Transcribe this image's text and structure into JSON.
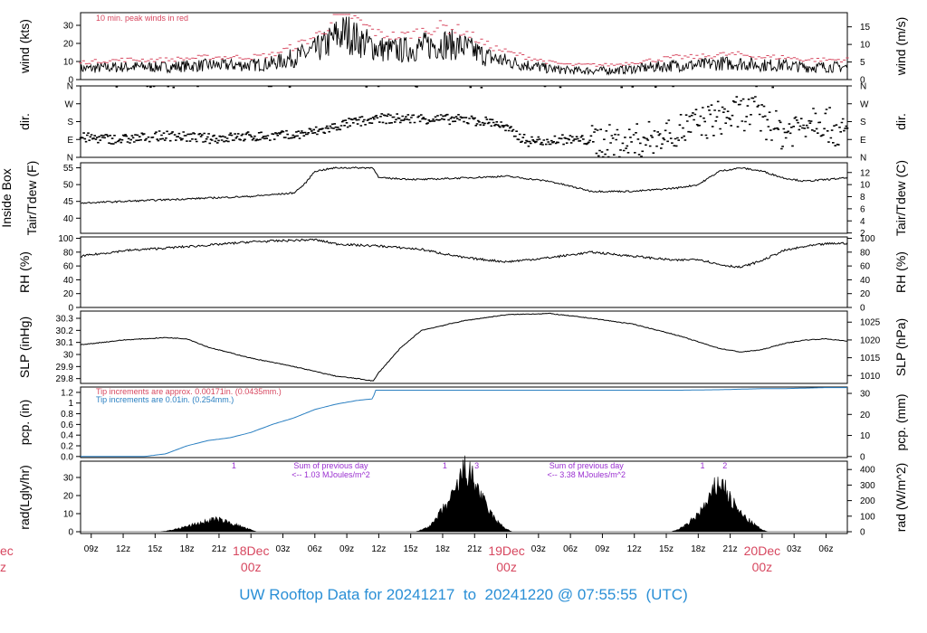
{
  "colors": {
    "frame": "#000000",
    "trace": "#000000",
    "peak": "#d7475f",
    "precip": "#2a7fc1",
    "note_purple": "#9a2fd0",
    "day_label": "#d7475f",
    "footer": "#2a8fd6"
  },
  "footer": {
    "title_parts": [
      "UW Rooftop Data for 20241217",
      "to",
      "20241220 @ 07:55:55",
      "(UTC)"
    ]
  },
  "time_axis": {
    "hour_ticks": [
      "09z",
      "12z",
      "15z",
      "18z",
      "21z",
      "03z",
      "06z",
      "09z",
      "12z",
      "15z",
      "18z",
      "21z",
      "03z",
      "06z",
      "09z",
      "12z",
      "15z",
      "18z",
      "21z",
      "03z",
      "06z"
    ],
    "hour_positions": [
      9,
      12,
      15,
      18,
      21,
      27,
      30,
      33,
      36,
      39,
      42,
      45,
      51,
      54,
      57,
      60,
      63,
      66,
      69,
      75,
      78
    ],
    "day_labels": [
      {
        "day": "18Dec",
        "hour": "00z",
        "t": 24
      },
      {
        "day": "19Dec",
        "hour": "00z",
        "t": 48
      },
      {
        "day": "20Dec",
        "hour": "00z",
        "t": 72
      }
    ],
    "left_clipped": {
      "day": "ec",
      "hour": "z"
    },
    "t_range": [
      8,
      80
    ]
  },
  "chart_data": [
    {
      "type": "line",
      "ylabel_left": "wind (kts)",
      "ylabel_right": "wind (m/s)",
      "ylim": [
        0,
        37
      ],
      "yticks_left": [
        0,
        10,
        20,
        30
      ],
      "yticks_right": [
        0,
        5,
        10,
        15
      ],
      "right_factor": 1.944,
      "annotation": "10 min. peak winds in red",
      "series": [
        {
          "values_t": [
            8,
            12,
            16,
            20,
            24,
            26,
            28,
            29,
            30,
            31,
            32,
            33,
            34,
            36,
            38,
            40,
            42,
            44,
            46,
            48,
            50,
            52,
            54,
            56,
            58,
            60,
            62,
            64,
            66,
            68,
            70,
            72,
            74,
            76,
            78,
            80
          ],
          "values": [
            6,
            7,
            7,
            8,
            8,
            9,
            12,
            14,
            16,
            19,
            24,
            26,
            22,
            17,
            16,
            18,
            20,
            18,
            13,
            10,
            8,
            6,
            5,
            5,
            5,
            6,
            7,
            8,
            8,
            9,
            9,
            8,
            8,
            7,
            7,
            7
          ]
        }
      ]
    },
    {
      "type": "scatter",
      "ylabel_left": "dir.",
      "ylabel_right": "dir.",
      "ylim": [
        0,
        360
      ],
      "yticks_left_labels": [
        "N",
        "E",
        "S",
        "W",
        "N"
      ],
      "yticks_values": [
        0,
        90,
        180,
        270,
        360
      ],
      "series": [
        {
          "values_t": [
            8,
            12,
            16,
            20,
            24,
            28,
            31,
            33,
            36,
            40,
            44,
            47,
            50,
            53,
            56,
            59,
            62,
            65,
            68,
            71,
            74,
            77,
            80
          ],
          "values": [
            100,
            90,
            110,
            95,
            105,
            110,
            140,
            170,
            195,
            195,
            190,
            175,
            80,
            90,
            85,
            70,
            100,
            150,
            200,
            230,
            120,
            210,
            100
          ]
        }
      ]
    },
    {
      "type": "line",
      "ylabel_left": "Tair/Tdew (F)",
      "ylabel_left_sub": "Inside Box",
      "ylabel_right": "Tair/Tdew (C)",
      "ylim": [
        35.5,
        56.5
      ],
      "yticks_left": [
        40,
        45,
        50,
        55
      ],
      "yticks_right": [
        2,
        4,
        6,
        8,
        10,
        12
      ],
      "series": [
        {
          "values_t": [
            8,
            12,
            16,
            20,
            24,
            28,
            29,
            30,
            32,
            34,
            35.5,
            36,
            40,
            44,
            48,
            52,
            56,
            60,
            64,
            66,
            68,
            70,
            72,
            74,
            76,
            78,
            80
          ],
          "values": [
            44.5,
            45,
            45.5,
            46,
            46.5,
            47.5,
            50,
            54,
            55,
            55,
            55,
            52,
            51.5,
            52,
            52.5,
            51,
            48,
            48,
            49,
            50,
            54,
            55,
            54,
            52,
            51,
            51.5,
            52
          ]
        }
      ]
    },
    {
      "type": "line",
      "ylabel_left": "RH (%)",
      "ylabel_right": "RH (%)",
      "ylim": [
        0,
        102
      ],
      "yticks_left": [
        0,
        20,
        40,
        60,
        80,
        100
      ],
      "yticks_right": [
        0,
        20,
        40,
        60,
        80,
        100
      ],
      "series": [
        {
          "values_t": [
            8,
            12,
            16,
            20,
            24,
            28,
            30,
            32,
            34,
            36,
            40,
            44,
            48,
            52,
            56,
            60,
            64,
            66,
            68,
            70,
            72,
            74,
            76,
            78,
            80
          ],
          "values": [
            74,
            82,
            86,
            90,
            95,
            97,
            98,
            92,
            90,
            89,
            84,
            72,
            66,
            72,
            80,
            74,
            68,
            70,
            62,
            58,
            68,
            82,
            88,
            92,
            93
          ]
        }
      ]
    },
    {
      "type": "line",
      "ylabel_left": "SLP (inHg)",
      "ylabel_right": "SLP (hPa)",
      "ylim": [
        29.76,
        30.36
      ],
      "yticks_left": [
        29.8,
        29.9,
        30.0,
        30.1,
        30.2,
        30.3
      ],
      "yticks_right": [
        1010,
        1015,
        1020,
        1025
      ],
      "series": [
        {
          "values_t": [
            8,
            12,
            16,
            18,
            20,
            24,
            28,
            32,
            34,
            35.5,
            36,
            38,
            40,
            44,
            48,
            52,
            56,
            60,
            64,
            68,
            70,
            72,
            74,
            76,
            78,
            80
          ],
          "values": [
            30.08,
            30.12,
            30.14,
            30.13,
            30.06,
            29.97,
            29.9,
            29.82,
            29.8,
            29.78,
            29.85,
            30.05,
            30.2,
            30.28,
            30.33,
            30.34,
            30.3,
            30.25,
            30.16,
            30.05,
            30.02,
            30.04,
            30.09,
            30.12,
            30.13,
            30.11
          ]
        }
      ]
    },
    {
      "type": "line",
      "ylabel_left": "pcp. (in)",
      "ylabel_right": "pcp. (mm)",
      "ylim": [
        -0.02,
        1.3
      ],
      "yticks_left": [
        0.0,
        0.2,
        0.4,
        0.6,
        0.8,
        1.0,
        1.2
      ],
      "yticks_right": [
        0,
        10,
        20,
        30
      ],
      "notes": [
        "Tip increments are approx. 0.00171in. (0.0435mm.)",
        "Tip increments are 0.01in. (0.254mm.)"
      ],
      "series": [
        {
          "values_t": [
            8,
            14,
            16,
            18,
            20,
            22,
            24,
            26,
            28,
            30,
            32,
            34,
            35.5,
            35.6,
            48,
            64,
            68,
            70,
            72,
            74,
            76,
            78,
            80
          ],
          "values": [
            0.0,
            0.0,
            0.05,
            0.2,
            0.3,
            0.35,
            0.45,
            0.6,
            0.72,
            0.88,
            0.98,
            1.05,
            1.08,
            1.24,
            1.24,
            1.24,
            1.25,
            1.26,
            1.27,
            1.27,
            1.28,
            1.29,
            1.29
          ]
        }
      ]
    },
    {
      "type": "area",
      "ylabel_left": "rad(Lgly/hr)",
      "ylabel_right": "rad (W/m^2)",
      "ylim": [
        -1,
        39
      ],
      "yticks_left": [
        0,
        10,
        20,
        30
      ],
      "yticks_right": [
        0,
        100,
        200,
        300,
        400
      ],
      "right_factor": 11.63,
      "annotations": [
        {
          "text": "1",
          "t": 22.4
        },
        {
          "text": "Sum of previous day",
          "t": 31.5
        },
        {
          "text": "<-- 1.03 MJoules/m^2",
          "t": 31.5,
          "line": 2
        },
        {
          "text": "1",
          "t": 42.2
        },
        {
          "text": "3",
          "t": 45.2
        },
        {
          "text": "Sum of previous day",
          "t": 55.5
        },
        {
          "text": "<-- 3.38 MJoules/m^2",
          "t": 55.5,
          "line": 2
        },
        {
          "text": "1",
          "t": 66.4
        },
        {
          "text": "2",
          "t": 68.5
        }
      ],
      "series": [
        {
          "values_t": [
            15.5,
            16,
            17,
            18,
            19,
            20,
            20.5,
            21,
            22,
            23,
            24,
            24.5,
            39.5,
            40,
            41,
            42,
            43,
            43.5,
            44,
            44.5,
            45,
            45.5,
            46,
            47,
            48,
            48.5,
            63.5,
            64,
            65,
            66,
            67,
            67.5,
            68,
            68.5,
            69,
            70,
            71,
            72,
            72.5
          ],
          "values": [
            0,
            0.3,
            1.5,
            3,
            4.5,
            6,
            7,
            6.5,
            5,
            3,
            1,
            0,
            0,
            1,
            4,
            12,
            20,
            27,
            35,
            32,
            28,
            22,
            15,
            6,
            1.5,
            0,
            0,
            1,
            4,
            10,
            17,
            24,
            28,
            25,
            18,
            10,
            5,
            1,
            0
          ]
        }
      ]
    }
  ]
}
